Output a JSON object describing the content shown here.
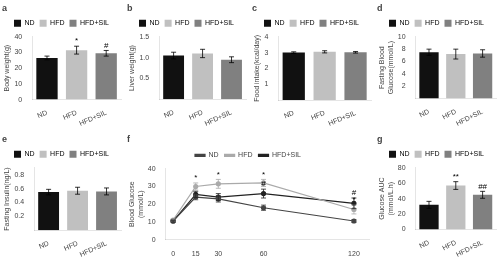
{
  "chart_data": [
    {
      "type": "bar",
      "title": "a",
      "categories": [
        "ND",
        "HFD",
        "HFD+SIL"
      ],
      "values": [
        26.5,
        31.5,
        29.5
      ],
      "errors": [
        1.2,
        2.5,
        1.8
      ],
      "colors": [
        "#111111",
        "#c0c0c0",
        "#808080"
      ],
      "ylabel": "Body weight(g)",
      "ylim": [
        0,
        40
      ],
      "yticks": [
        0,
        10,
        20,
        30,
        40
      ],
      "grid": false,
      "legend": "top",
      "annotations": [
        {
          "category": "HFD",
          "text": "*"
        },
        {
          "category": "HFD+SIL",
          "text": "#"
        }
      ]
    },
    {
      "type": "bar",
      "title": "b",
      "categories": [
        "ND",
        "HFD",
        "HFD+SIL"
      ],
      "values": [
        1.05,
        1.1,
        0.95
      ],
      "errors": [
        0.08,
        0.1,
        0.07
      ],
      "colors": [
        "#111111",
        "#c0c0c0",
        "#808080"
      ],
      "ylabel": "Liver weight(g)",
      "ylim": [
        0,
        1.5
      ],
      "yticks": [
        0.5,
        {
          "value": 1.0,
          "label": "1.0"
        },
        1.5
      ],
      "grid": false,
      "legend": "top"
    },
    {
      "type": "bar",
      "title": "c",
      "categories": [
        "ND",
        "HFD",
        "HFD+SIL"
      ],
      "values": [
        3.0,
        3.05,
        3.02
      ],
      "errors": [
        0.05,
        0.07,
        0.05
      ],
      "colors": [
        "#111111",
        "#c0c0c0",
        "#808080"
      ],
      "ylabel": "Food intake(kcal/day)",
      "ylim": [
        0,
        4.0
      ],
      "yticks": [
        1,
        2,
        3,
        4
      ],
      "grid": false,
      "legend": "top"
    },
    {
      "type": "bar",
      "title": "d",
      "categories": [
        "ND",
        "HFD",
        "HFD+SIL"
      ],
      "values": [
        7.5,
        7.2,
        7.3
      ],
      "errors": [
        0.5,
        0.8,
        0.6
      ],
      "colors": [
        "#111111",
        "#c0c0c0",
        "#808080"
      ],
      "ylabel": "Fasting Blood\nGlucose(mmol/L)",
      "ylim": [
        0,
        10
      ],
      "yticks": [
        2,
        4,
        6,
        8,
        10
      ],
      "grid": false,
      "legend": "top"
    },
    {
      "type": "bar",
      "title": "e",
      "categories": [
        "ND",
        "HFD",
        "HFD+SIL"
      ],
      "values": [
        0.55,
        0.57,
        0.56
      ],
      "errors": [
        0.04,
        0.05,
        0.05
      ],
      "colors": [
        "#111111",
        "#c0c0c0",
        "#808080"
      ],
      "ylabel": "Fasting Insulin(ng/L)",
      "ylim": [
        0,
        0.9
      ],
      "yticks": [
        0.2,
        0.4,
        0.6,
        0.8
      ],
      "grid": false,
      "legend": "top"
    },
    {
      "type": "line",
      "title": "f",
      "x": [
        0,
        15,
        30,
        60,
        120
      ],
      "series": [
        {
          "name": "ND",
          "color": "#444444",
          "marker": "circle",
          "values": [
            10.5,
            24.0,
            23.0,
            18.0,
            10.5
          ],
          "errors": [
            0.5,
            1.5,
            1.8,
            1.5,
            0.8
          ]
        },
        {
          "name": "HFD",
          "color": "#aaaaaa",
          "marker": "circle",
          "values": [
            11.0,
            30.0,
            31.5,
            32.0,
            17.0
          ],
          "errors": [
            0.6,
            2.0,
            2.5,
            2.0,
            2.5
          ]
        },
        {
          "name": "HFD+SIL",
          "color": "#222222",
          "marker": "circle",
          "values": [
            10.5,
            25.5,
            24.0,
            26.0,
            20.5
          ],
          "errors": [
            0.5,
            1.8,
            2.0,
            2.5,
            3.0
          ]
        }
      ],
      "ylabel": "Blood Glucose\n(mmol/L)",
      "xlim": [
        -5,
        130
      ],
      "xticks": [
        0,
        15,
        30,
        60,
        120
      ],
      "ylim": [
        0,
        40
      ],
      "yticks": [
        0,
        10,
        20,
        30,
        40
      ],
      "grid": false,
      "legend": "top",
      "annotations": [
        {
          "x": 15,
          "series": "HFD",
          "text": "*"
        },
        {
          "x": 30,
          "series": "HFD",
          "text": "*"
        },
        {
          "x": 60,
          "series": "HFD",
          "text": "*"
        },
        {
          "x": 120,
          "series": "HFD",
          "text": "*"
        },
        {
          "x": 60,
          "series": "HFD+SIL",
          "text": "#"
        },
        {
          "x": 120,
          "series": "HFD+SIL",
          "text": "#"
        }
      ]
    },
    {
      "type": "bar",
      "title": "g",
      "categories": [
        "ND",
        "HFD",
        "HFD+SIL"
      ],
      "values": [
        32.0,
        57.0,
        45.0
      ],
      "errors": [
        4.5,
        5.0,
        4.5
      ],
      "colors": [
        "#111111",
        "#c0c0c0",
        "#808080"
      ],
      "ylabel": "Glucose AUC\n(mmol/L.h)",
      "ylim": [
        0,
        80
      ],
      "yticks": [
        0,
        20,
        40,
        60,
        80
      ],
      "grid": false,
      "legend": "top",
      "annotations": [
        {
          "category": "HFD",
          "text": "**"
        },
        {
          "category": "HFD+SIL",
          "text": "##"
        }
      ]
    }
  ]
}
